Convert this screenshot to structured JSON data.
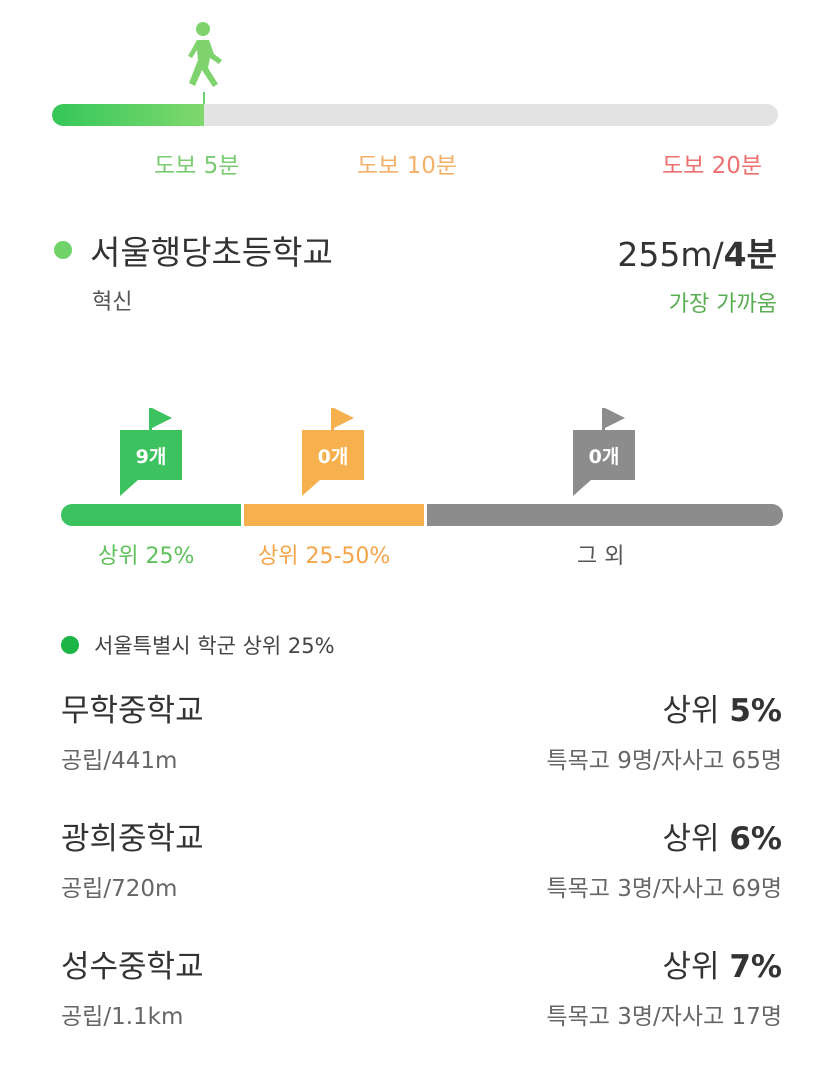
{
  "walk": {
    "progress": 0.21,
    "labels": {
      "five": "도보 5분",
      "ten": "도보 10분",
      "twenty": "도보 20분"
    },
    "colors": {
      "five": "#7acb72",
      "ten": "#f5b06a",
      "twenty": "#ef6f6f"
    },
    "icon": "walking-person-icon"
  },
  "nearest": {
    "name": "서울행당초등학교",
    "type": "혁신",
    "distance": "255m/",
    "time": "4분",
    "badge": "가장 가까움"
  },
  "rank": {
    "segments": [
      {
        "label": "상위 25%",
        "count": "9개",
        "color": "#3cc25f"
      },
      {
        "label": "상위 25-50%",
        "count": "0개",
        "color": "#f6b04e"
      },
      {
        "label": "그 외",
        "count": "0개",
        "color": "#8c8c8c"
      }
    ]
  },
  "district": {
    "title": "서울특별시 학군 상위 25%",
    "schools": [
      {
        "name": "무학중학교",
        "rank_prefix": "상위 ",
        "rank_value": "5%",
        "sub": "공립/441m",
        "stats": "특목고 9명/자사고 65명"
      },
      {
        "name": "광희중학교",
        "rank_prefix": "상위 ",
        "rank_value": "6%",
        "sub": "공립/720m",
        "stats": "특목고 3명/자사고 69명"
      },
      {
        "name": "성수중학교",
        "rank_prefix": "상위 ",
        "rank_value": "7%",
        "sub": "공립/1.1km",
        "stats": "특목고 3명/자사고 17명"
      }
    ]
  }
}
